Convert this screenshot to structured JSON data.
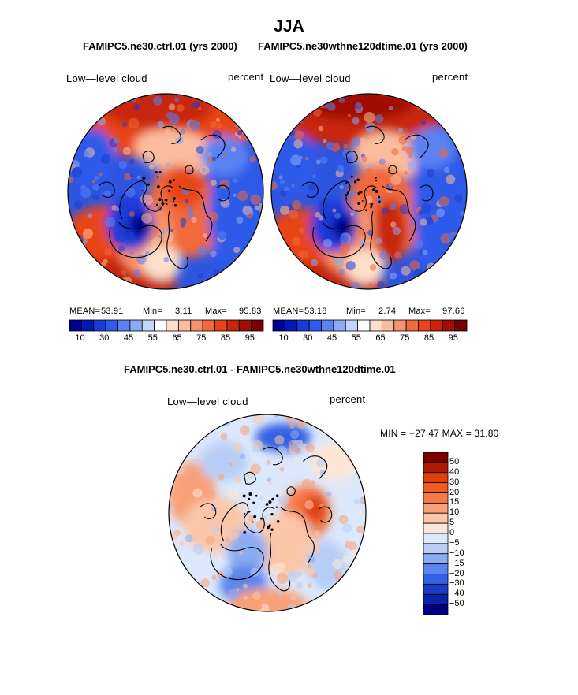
{
  "page": {
    "title": "JJA",
    "panel_titles": {
      "left": "FAMIPC5.ne30.ctrl.01 (yrs 2000)",
      "right": "FAMIPC5.ne30wthne120dtime.01 (yrs 2000)",
      "diff": "FAMIPC5.ne30.ctrl.01 - FAMIPC5.ne30wthne120dtime.01"
    },
    "variable": "Low—level cloud",
    "units": "percent"
  },
  "chart_data": [
    {
      "type": "heatmap",
      "name": "ctrl",
      "title": "FAMIPC5.ne30.ctrl.01 (yrs 2000)",
      "subtitle_left": "Low—level cloud",
      "subtitle_right": "percent",
      "projection": "north-polar-stereographic",
      "stats": {
        "mean_label": "MEAN=",
        "mean": "53.91",
        "min_label": "Min=",
        "min": "3.11",
        "max_label": "Max=",
        "max": "95.83"
      },
      "colorbar": {
        "levels": [
          10,
          30,
          45,
          55,
          65,
          75,
          85,
          95
        ],
        "labels": [
          "10",
          "30",
          "45",
          "55",
          "65",
          "75",
          "85",
          "95"
        ],
        "colors": [
          "#000090",
          "#0418b8",
          "#1a3ad8",
          "#2f5aea",
          "#5a82f2",
          "#8eaaf6",
          "#c4d4fb",
          "#ffffff",
          "#fde0cc",
          "#fbbd9d",
          "#f6936a",
          "#f1693c",
          "#e84418",
          "#c82508",
          "#a00e04",
          "#7a0000"
        ]
      }
    },
    {
      "type": "heatmap",
      "name": "test",
      "title": "FAMIPC5.ne30wthne120dtime.01 (yrs 2000)",
      "subtitle_left": "Low—level cloud",
      "subtitle_right": "percent",
      "projection": "north-polar-stereographic",
      "stats": {
        "mean_label": "MEAN=",
        "mean": "53.18",
        "min_label": "Min=",
        "min": "2.74",
        "max_label": "Max=",
        "max": "97.66"
      },
      "colorbar": {
        "levels": [
          10,
          30,
          45,
          55,
          65,
          75,
          85,
          95
        ],
        "labels": [
          "10",
          "30",
          "45",
          "55",
          "65",
          "75",
          "85",
          "95"
        ],
        "colors": [
          "#000090",
          "#0418b8",
          "#1a3ad8",
          "#2f5aea",
          "#5a82f2",
          "#8eaaf6",
          "#c4d4fb",
          "#ffffff",
          "#fde0cc",
          "#fbbd9d",
          "#f6936a",
          "#f1693c",
          "#e84418",
          "#c82508",
          "#a00e04",
          "#7a0000"
        ]
      }
    },
    {
      "type": "heatmap",
      "name": "difference",
      "title": "FAMIPC5.ne30.ctrl.01 - FAMIPC5.ne30wthne120dtime.01",
      "subtitle_left": "Low—level cloud",
      "subtitle_right": "percent",
      "projection": "north-polar-stereographic",
      "stats": {
        "text": "MIN = −27.47 MAX =  31.80",
        "min": -27.47,
        "max": 31.8
      },
      "colorbar": {
        "orientation": "vertical",
        "labels": [
          "50",
          "40",
          "30",
          "20",
          "15",
          "10",
          "5",
          "0",
          "−5",
          "−10",
          "−15",
          "−20",
          "−30",
          "−40",
          "−50"
        ],
        "colors": [
          "#7a0000",
          "#b01a04",
          "#e0400c",
          "#f25a22",
          "#f57a48",
          "#f8a078",
          "#fbc6a8",
          "#fde6d6",
          "#dce8fb",
          "#b8cef7",
          "#8aacf2",
          "#5a86ec",
          "#3160e2",
          "#1a3ec8",
          "#0a22a8",
          "#000080"
        ]
      }
    }
  ]
}
